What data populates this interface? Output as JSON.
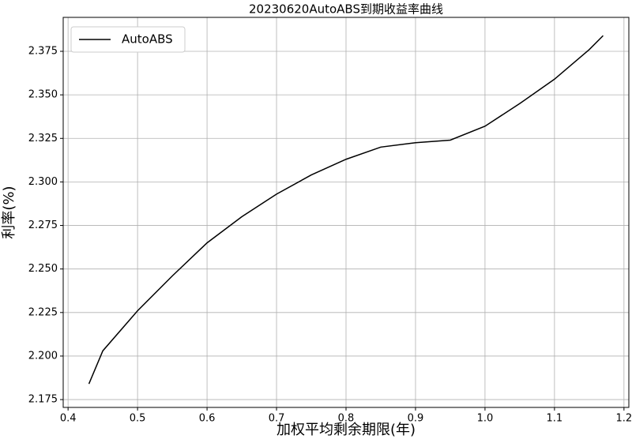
{
  "chart_data": {
    "type": "line",
    "title": "20230620AutoABS到期收益率曲线",
    "x_label": "加权平均剩余期限(年)",
    "y_label": "利率(%)",
    "x": [
      0.43,
      0.45,
      0.5,
      0.55,
      0.6,
      0.65,
      0.7,
      0.75,
      0.8,
      0.85,
      0.9,
      0.95,
      1.0,
      1.05,
      1.1,
      1.15,
      1.17
    ],
    "series": [
      {
        "name": "AutoABS",
        "color": "#000000",
        "values": [
          2.184,
          2.203,
          2.226,
          2.246,
          2.265,
          2.28,
          2.293,
          2.304,
          2.313,
          2.32,
          2.3225,
          2.324,
          2.332,
          2.345,
          2.359,
          2.376,
          2.384
        ]
      }
    ],
    "xlim": [
      0.393,
      1.207
    ],
    "xticks": [
      0.4,
      0.5,
      0.6,
      0.7,
      0.8,
      0.9,
      {
        "value": 1,
        "label": "1.0"
      },
      1.1,
      1.2
    ],
    "ylim": [
      2.1705,
      2.3945
    ],
    "yticks": [
      2.175,
      {
        "value": 2.2,
        "label": "2.200"
      },
      2.225,
      {
        "value": 2.25,
        "label": "2.250"
      },
      2.275,
      {
        "value": 2.3,
        "label": "2.300"
      },
      2.325,
      {
        "value": 2.35,
        "label": "2.350"
      },
      2.375
    ],
    "grid": true,
    "legend": "upper-left"
  }
}
